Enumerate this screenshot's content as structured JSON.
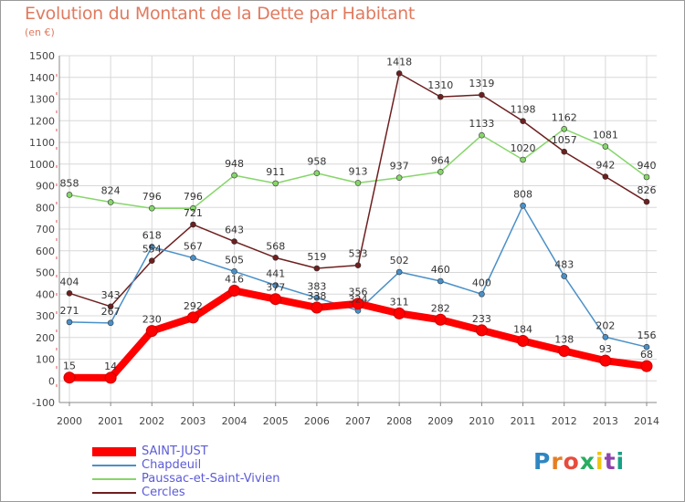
{
  "title": "Evolution du Montant de la Dette par Habitant",
  "subtitle": "(en €)",
  "logo": {
    "text": "Proxiti",
    "colors": [
      "#2e86c1",
      "#e67e22",
      "#e74c3c",
      "#27ae60",
      "#f1c40f",
      "#8e44ad",
      "#16a085"
    ]
  },
  "chart_data": {
    "type": "line",
    "x": [
      2000,
      2001,
      2002,
      2003,
      2004,
      2005,
      2006,
      2007,
      2008,
      2009,
      2010,
      2011,
      2012,
      2013,
      2014
    ],
    "ylim": [
      -100,
      1500
    ],
    "yticks": [
      -100,
      0,
      100,
      200,
      300,
      400,
      500,
      600,
      700,
      800,
      900,
      1000,
      1100,
      1200,
      1300,
      1400,
      1500
    ],
    "grid": true,
    "legend_position": "bottom-left",
    "series": [
      {
        "name": "SAINT-JUST",
        "color": "#ff0000",
        "values": [
          15,
          14,
          230,
          292,
          416,
          377,
          338,
          356,
          311,
          282,
          233,
          184,
          138,
          93,
          68
        ]
      },
      {
        "name": "Chapdeuil",
        "color": "#4a90c8",
        "values": [
          271,
          267,
          618,
          567,
          505,
          441,
          383,
          324,
          502,
          460,
          400,
          808,
          483,
          202,
          156
        ]
      },
      {
        "name": "Paussac-et-Saint-Vivien",
        "color": "#86d66b",
        "values": [
          858,
          824,
          796,
          796,
          948,
          911,
          958,
          913,
          937,
          964,
          1133,
          1020,
          1162,
          1081,
          940
        ]
      },
      {
        "name": "Cercles",
        "color": "#6e1f1f",
        "values": [
          404,
          343,
          554,
          721,
          643,
          568,
          519,
          533,
          1418,
          1310,
          1319,
          1198,
          1057,
          942,
          826
        ]
      }
    ]
  }
}
